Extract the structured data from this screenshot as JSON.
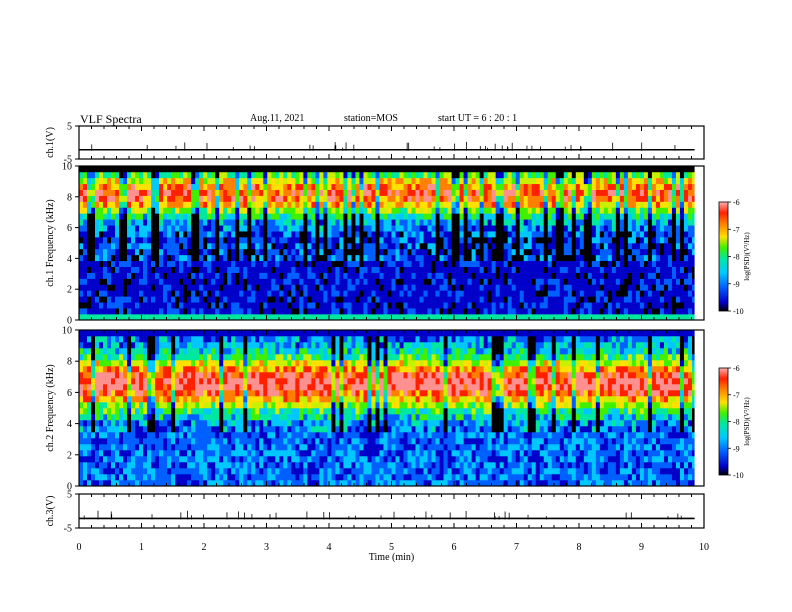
{
  "header": {
    "title": "VLF Spectra",
    "date": "Aug.11, 2021",
    "station": "station=MOS",
    "start_ut": "start UT =  6 : 20 : 1"
  },
  "chart_data": [
    {
      "type": "line",
      "ylabel": "ch.1(V)",
      "ylim": [
        -5,
        5
      ],
      "yticks": [
        "5",
        "-5"
      ],
      "xlim": [
        0,
        10
      ],
      "series": [
        {
          "values_description_level": -2.2
        }
      ]
    },
    {
      "type": "heatmap",
      "ylabel": "ch.1 Frequency (kHz)",
      "ylim": [
        0,
        10
      ],
      "yticks": [
        "0",
        "2",
        "4",
        "6",
        "8",
        "10"
      ],
      "xlim": [
        0,
        10
      ],
      "colorbar": {
        "label": "log(PSD)(V²/Hz)",
        "ticks": [
          "-6",
          "-7",
          "-8",
          "-9",
          "-10"
        ],
        "range": [
          -10,
          -6
        ]
      },
      "colors": [
        "#000000",
        "#0000c8",
        "#0060ff",
        "#00c8ff",
        "#00e8a0",
        "#40f000",
        "#c8f000",
        "#ffe000",
        "#ff8000",
        "#ff2000",
        "#ff9090"
      ]
    },
    {
      "type": "heatmap",
      "ylabel": "ch.2 Frequency (kHz)",
      "ylim": [
        0,
        10
      ],
      "yticks": [
        "0",
        "2",
        "4",
        "6",
        "8",
        "10"
      ],
      "xlim": [
        0,
        10
      ],
      "colorbar": {
        "label": "log(PSD)(V²/Hz)",
        "ticks": [
          "-6",
          "-7",
          "-8",
          "-9",
          "-10"
        ],
        "range": [
          -10,
          -6
        ]
      }
    },
    {
      "type": "line",
      "ylabel": "ch.3(V)",
      "ylim": [
        -5,
        5
      ],
      "yticks": [
        "5",
        "-5"
      ],
      "xlim": [
        0,
        10
      ],
      "xlabel": "Time (min)",
      "xticks": [
        "0",
        "1",
        "2",
        "3",
        "4",
        "5",
        "6",
        "7",
        "8",
        "9",
        "10"
      ]
    }
  ]
}
